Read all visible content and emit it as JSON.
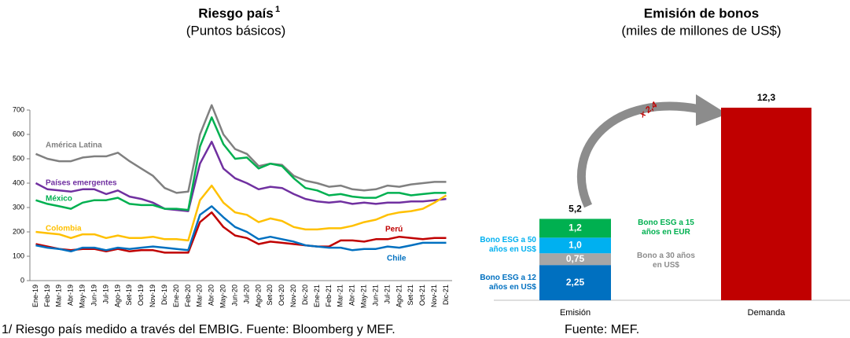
{
  "chart_data": [
    {
      "type": "line",
      "title": "Riesgo país",
      "title_superscript": "1",
      "subtitle": "(Puntos básicos)",
      "footnote": "1/ Riesgo país medido a través del EMBIG. Fuente: Bloomberg y MEF.",
      "categories": [
        "Ene-19",
        "Feb-19",
        "Mar-19",
        "Abr-19",
        "May-19",
        "Jun-19",
        "Jul-19",
        "Ago-19",
        "Set-19",
        "Oct-19",
        "Nov-19",
        "Dic-19",
        "Ene-20",
        "Feb-20",
        "Mar-20",
        "Abr-20",
        "May-20",
        "Jun-20",
        "Jul-20",
        "Ago-20",
        "Set-20",
        "Oct-20",
        "Nov-20",
        "Dic-20",
        "Ene-21",
        "Feb-21",
        "Mar-21",
        "Abr-21",
        "May-21",
        "Jun-21",
        "Jul-21",
        "Ago-21",
        "Set-21",
        "Oct-21",
        "Nov-21",
        "Dic-21"
      ],
      "ylim": [
        0,
        700
      ],
      "yticks": [
        0,
        100,
        200,
        300,
        400,
        500,
        600,
        700
      ],
      "series": [
        {
          "name": "América Latina",
          "color": "#808080",
          "values": [
            520,
            500,
            490,
            490,
            505,
            510,
            510,
            525,
            490,
            460,
            430,
            380,
            360,
            365,
            600,
            720,
            600,
            540,
            520,
            470,
            480,
            475,
            430,
            410,
            400,
            385,
            390,
            375,
            370,
            375,
            390,
            385,
            395,
            400,
            405,
            405
          ]
        },
        {
          "name": "Países emergentes",
          "color": "#7030a0",
          "values": [
            400,
            375,
            370,
            365,
            375,
            375,
            355,
            370,
            345,
            335,
            320,
            295,
            290,
            285,
            480,
            570,
            460,
            420,
            400,
            375,
            385,
            380,
            355,
            335,
            325,
            320,
            325,
            315,
            320,
            315,
            320,
            320,
            325,
            325,
            330,
            335
          ]
        },
        {
          "name": "México",
          "color": "#00b050",
          "values": [
            330,
            315,
            305,
            295,
            320,
            330,
            330,
            340,
            315,
            310,
            310,
            295,
            295,
            290,
            550,
            670,
            560,
            500,
            505,
            460,
            480,
            470,
            420,
            380,
            370,
            350,
            355,
            345,
            340,
            340,
            360,
            360,
            350,
            355,
            360,
            360
          ]
        },
        {
          "name": "Colombia",
          "color": "#ffc000",
          "values": [
            200,
            195,
            190,
            175,
            190,
            190,
            175,
            185,
            175,
            175,
            180,
            170,
            170,
            165,
            330,
            390,
            320,
            280,
            270,
            240,
            255,
            245,
            220,
            210,
            210,
            215,
            215,
            225,
            240,
            250,
            270,
            280,
            285,
            295,
            320,
            350
          ]
        },
        {
          "name": "Perú",
          "color": "#c00000",
          "values": [
            150,
            140,
            130,
            125,
            130,
            130,
            120,
            130,
            120,
            125,
            125,
            115,
            115,
            115,
            240,
            280,
            220,
            185,
            175,
            150,
            160,
            155,
            150,
            145,
            140,
            140,
            165,
            165,
            160,
            170,
            170,
            180,
            175,
            170,
            175,
            175
          ]
        },
        {
          "name": "Chile",
          "color": "#0070c0",
          "values": [
            145,
            135,
            130,
            120,
            135,
            135,
            125,
            135,
            130,
            135,
            140,
            135,
            130,
            125,
            270,
            305,
            260,
            220,
            200,
            170,
            180,
            170,
            160,
            145,
            140,
            135,
            135,
            125,
            130,
            130,
            140,
            135,
            145,
            155,
            155,
            155
          ]
        }
      ]
    },
    {
      "type": "stacked_bar",
      "title": "Emisión de bonos",
      "subtitle": "(miles de millones de US$)",
      "footnote": "Fuente: MEF.",
      "annotation": "x 2,4",
      "categories": [
        "Emisión",
        "Demanda"
      ],
      "totals": [
        5.2,
        12.3
      ],
      "total_labels": [
        "5,2",
        "12,3"
      ],
      "series": [
        {
          "name": "Bono ESG a 12 años en US$",
          "color": "#0070c0",
          "values": [
            2.25,
            null
          ],
          "value_labels": [
            "2,25",
            null
          ]
        },
        {
          "name": "Bono a 30 años en US$",
          "color": "#a6a6a6",
          "values": [
            0.75,
            null
          ],
          "value_labels": [
            "0,75",
            null
          ]
        },
        {
          "name": "Bono ESG a 50 años en US$",
          "color": "#00b0f0",
          "values": [
            1.0,
            null
          ],
          "value_labels": [
            "1,0",
            null
          ]
        },
        {
          "name": "Bono ESG a 15 años en EUR",
          "color": "#00b050",
          "values": [
            1.2,
            null
          ],
          "value_labels": [
            "1,2",
            null
          ]
        },
        {
          "color": "#c00000",
          "values": [
            null,
            12.3
          ]
        }
      ]
    }
  ]
}
